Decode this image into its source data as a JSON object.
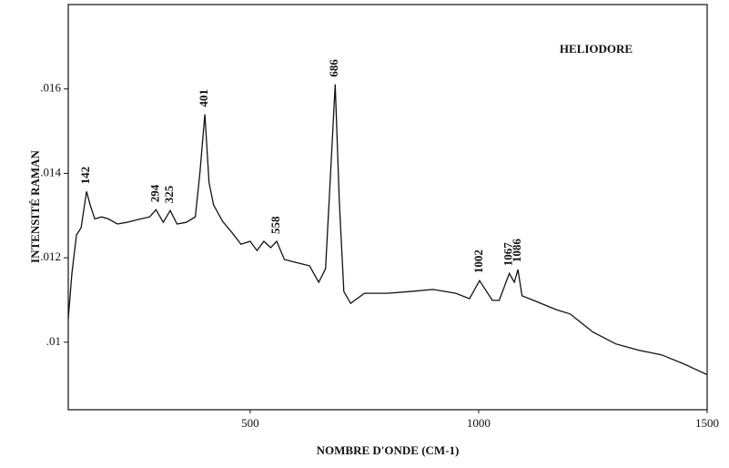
{
  "chart_data": {
    "type": "line",
    "title": "HELIODORE",
    "x_label": "NOMBRE D'ONDE (CM-1)",
    "y_label": "INTENSITÉ RAMAN",
    "xlim": [
      102,
      1500
    ],
    "ylim": [
      0.0084,
      0.018
    ],
    "xticks": [
      500,
      1000,
      1500
    ],
    "yticks": [
      {
        "value": 0.01,
        "label": ".01"
      },
      {
        "value": 0.012,
        "label": ".012"
      },
      {
        "value": 0.014,
        "label": ".014"
      },
      {
        "value": 0.016,
        "label": ".016"
      }
    ],
    "color": "#111111",
    "peaks": [
      142,
      294,
      325,
      401,
      558,
      686,
      1002,
      1067,
      1086
    ],
    "x": [
      102,
      110,
      120,
      130,
      142,
      150,
      160,
      175,
      190,
      210,
      230,
      260,
      280,
      294,
      310,
      325,
      340,
      360,
      380,
      390,
      401,
      410,
      420,
      440,
      460,
      480,
      500,
      515,
      530,
      545,
      558,
      575,
      600,
      630,
      650,
      665,
      675,
      686,
      695,
      705,
      720,
      750,
      800,
      850,
      900,
      950,
      980,
      1002,
      1030,
      1045,
      1067,
      1078,
      1086,
      1095,
      1120,
      1170,
      1200,
      1250,
      1300,
      1350,
      1400,
      1450,
      1500
    ],
    "values": [
      0.01056,
      0.01163,
      0.01254,
      0.01271,
      0.01357,
      0.01325,
      0.01292,
      0.01297,
      0.01292,
      0.0128,
      0.01284,
      0.01292,
      0.01297,
      0.01314,
      0.01284,
      0.01312,
      0.0128,
      0.01284,
      0.01297,
      0.014,
      0.0154,
      0.01378,
      0.01325,
      0.01286,
      0.0126,
      0.01232,
      0.01239,
      0.01217,
      0.01239,
      0.01224,
      0.01239,
      0.01196,
      0.01189,
      0.01181,
      0.01142,
      0.01174,
      0.01378,
      0.01611,
      0.01335,
      0.0112,
      0.01092,
      0.01116,
      0.01116,
      0.0112,
      0.01125,
      0.01116,
      0.01103,
      0.01146,
      0.01099,
      0.01099,
      0.01163,
      0.01142,
      0.01172,
      0.0111,
      0.01099,
      0.01077,
      0.01067,
      0.01024,
      0.00996,
      0.00981,
      0.0097,
      0.00948,
      0.00923
    ]
  }
}
